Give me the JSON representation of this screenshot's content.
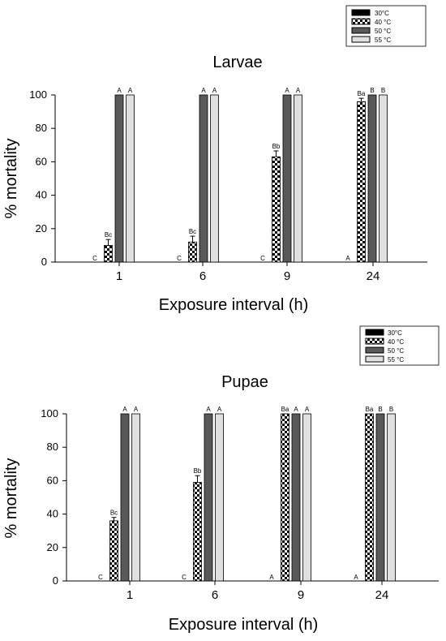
{
  "colors": {
    "30C": "#000000",
    "40C_pattern": "checkerboard",
    "50C": "#595959",
    "55C": "#e0e0e0"
  },
  "chart_data": [
    {
      "type": "bar",
      "title": "Larvae",
      "xlabel": "Exposure interval (h)",
      "ylabel": "% mortality",
      "ylim": [
        0,
        100
      ],
      "yticks": [
        0,
        20,
        40,
        60,
        80,
        100
      ],
      "categories": [
        "1",
        "6",
        "9",
        "24"
      ],
      "legend": {
        "placement": "top-right",
        "entries": [
          "30°C",
          "40 °C",
          "50 °C",
          "55 °C"
        ]
      },
      "grid": false,
      "series": [
        {
          "name": "30°C",
          "values": [
            0,
            0,
            0,
            0
          ],
          "errors": [
            0,
            0,
            0,
            0
          ],
          "labels": [
            "C",
            "C",
            "C",
            "A"
          ]
        },
        {
          "name": "40 °C",
          "values": [
            10,
            12,
            63,
            96
          ],
          "errors": [
            3.5,
            3.5,
            3.5,
            2
          ],
          "labels": [
            "Bc",
            "Bc",
            "Bb",
            "Ba"
          ]
        },
        {
          "name": "50 °C",
          "values": [
            100,
            100,
            100,
            100
          ],
          "errors": [
            0,
            0,
            0,
            0
          ],
          "labels": [
            "A",
            "A",
            "A",
            "B"
          ]
        },
        {
          "name": "55 °C",
          "values": [
            100,
            100,
            100,
            100
          ],
          "errors": [
            0,
            0,
            0,
            0
          ],
          "labels": [
            "A",
            "A",
            "A",
            "B"
          ]
        }
      ]
    },
    {
      "type": "bar",
      "title": "Pupae",
      "xlabel": "Exposure interval (h)",
      "ylabel": "% mortality",
      "ylim": [
        0,
        100
      ],
      "yticks": [
        0,
        20,
        40,
        60,
        80,
        100
      ],
      "categories": [
        "1",
        "6",
        "9",
        "24"
      ],
      "legend": {
        "placement": "top-right",
        "entries": [
          "30°C",
          "40 °C",
          "50 °C",
          "55 °C"
        ]
      },
      "grid": false,
      "series": [
        {
          "name": "30°C",
          "values": [
            0,
            0,
            0,
            0
          ],
          "errors": [
            0,
            0,
            0,
            0
          ],
          "labels": [
            "C",
            "C",
            "A",
            "A"
          ]
        },
        {
          "name": "40 °C",
          "values": [
            36,
            59,
            100,
            100
          ],
          "errors": [
            2,
            4,
            0,
            0
          ],
          "labels": [
            "Bc",
            "Bb",
            "Ba",
            "Ba"
          ]
        },
        {
          "name": "50 °C",
          "values": [
            100,
            100,
            100,
            100
          ],
          "errors": [
            0,
            0,
            0,
            0
          ],
          "labels": [
            "A",
            "A",
            "A",
            "B"
          ]
        },
        {
          "name": "55 °C",
          "values": [
            100,
            100,
            100,
            100
          ],
          "errors": [
            0,
            0,
            0,
            0
          ],
          "labels": [
            "A",
            "A",
            "A",
            "B"
          ]
        }
      ]
    }
  ]
}
